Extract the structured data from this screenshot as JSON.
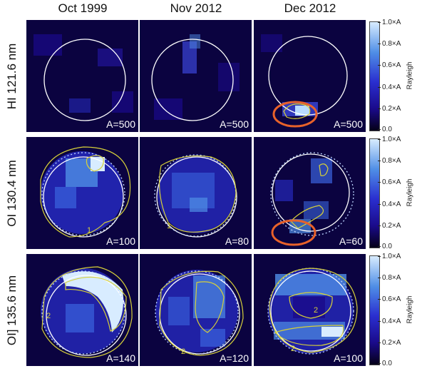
{
  "columns": [
    "Oct 1999",
    "Nov 2012",
    "Dec 2012"
  ],
  "rows": [
    {
      "label": "HI 121.6 nm",
      "amplitudes": [
        "A=500",
        "A=500",
        "A=500"
      ]
    },
    {
      "label": "OI 130.4 nm",
      "amplitudes": [
        "A=100",
        "A=80",
        "A=60"
      ]
    },
    {
      "label": "OI] 135.6 nm",
      "amplitudes": [
        "A=140",
        "A=120",
        "A=100"
      ]
    }
  ],
  "colorbar": {
    "ticks": [
      "1.0×A",
      "0.8×A",
      "0.6×A",
      "0.4×A",
      "0.2×A",
      "0.0"
    ],
    "unit": "Rayleigh"
  },
  "contour_labels": [
    "1",
    "1",
    "2",
    "2",
    "2",
    "2"
  ],
  "colors": {
    "contour": "#d6d03a",
    "limb_circle": "#ffffff",
    "highlight_ellipse": "#e8622a",
    "colormap": [
      "#050018",
      "#1a0a8a",
      "#2a2fd0",
      "#4f8ee6",
      "#d8ecff"
    ]
  }
}
